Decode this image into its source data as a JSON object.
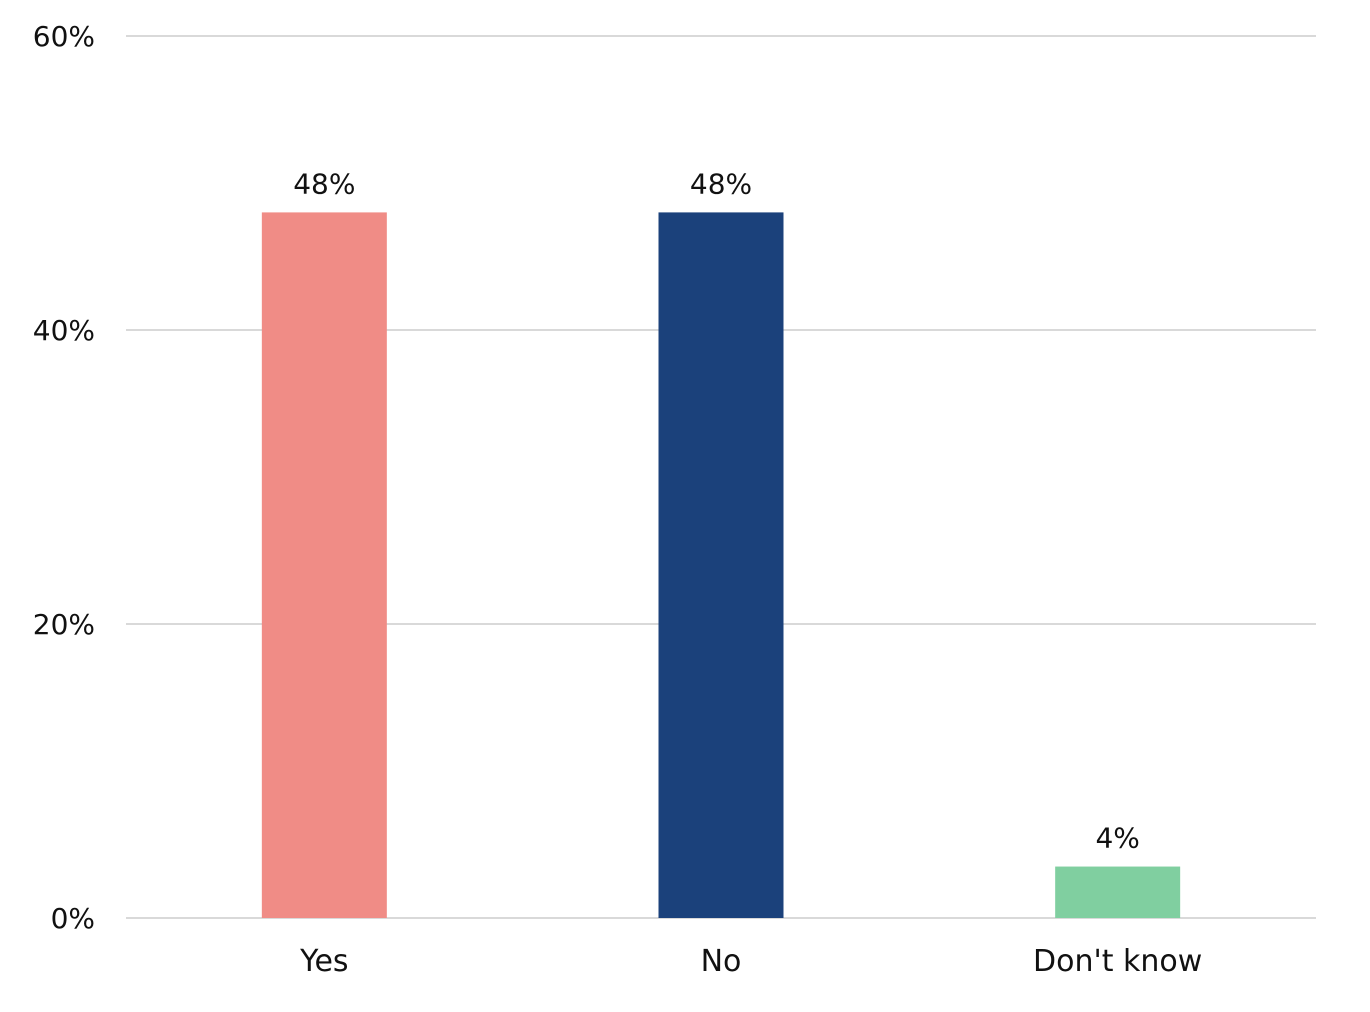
{
  "chart_data": {
    "type": "bar",
    "title": "",
    "xlabel": "",
    "ylabel": "",
    "categories": [
      "Yes",
      "No",
      "Don't know"
    ],
    "values": [
      48,
      48,
      3.5
    ],
    "value_labels": [
      "48%",
      "48%",
      "4%"
    ],
    "colors": [
      "#f08c86",
      "#1b417b",
      "#80cfa0"
    ],
    "ylim": [
      0,
      60
    ],
    "yticks": [
      0,
      20,
      40,
      60
    ],
    "ytick_labels": [
      "0%",
      "20%",
      "40%",
      "60%"
    ],
    "grid": true,
    "legend": "none"
  }
}
